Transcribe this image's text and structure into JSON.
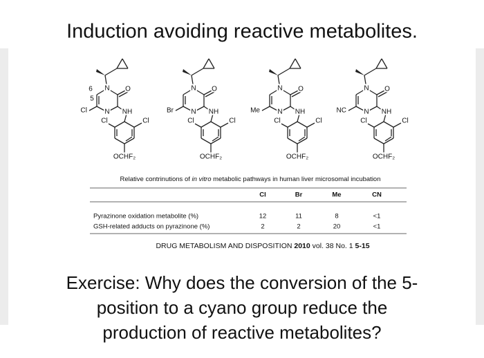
{
  "title": "Induction avoiding reactive metabolites.",
  "structures": [
    {
      "position_6": "6",
      "position_5": "5",
      "substituent": "Cl",
      "n_top": "N",
      "n_bottom": "N",
      "oxygen": "O",
      "amine": "NH",
      "chloro_left": "Cl",
      "chloro_right": "Cl",
      "ether": "OCHF₂"
    },
    {
      "substituent": "Br",
      "n_top": "N",
      "n_bottom": "N",
      "oxygen": "O",
      "amine": "NH",
      "chloro_left": "Cl",
      "chloro_right": "Cl",
      "ether": "OCHF₂"
    },
    {
      "substituent": "Me",
      "n_top": "N",
      "n_bottom": "N",
      "oxygen": "O",
      "amine": "NH",
      "chloro_left": "Cl",
      "chloro_right": "Cl",
      "ether": "OCHF₂"
    },
    {
      "substituent": "NC",
      "n_top": "N",
      "n_bottom": "N",
      "oxygen": "O",
      "amine": "NH",
      "chloro_left": "Cl",
      "chloro_right": "Cl",
      "ether": "OCHF₂"
    }
  ],
  "table": {
    "caption": [
      "Relative contrinutions of ",
      "in vitro",
      " metabolic pathways in human liver microsomal incubation"
    ],
    "columns": [
      "Cl",
      "Br",
      "Me",
      "CN"
    ],
    "rows": [
      {
        "label": "Pyrazinone oxidation metabolite (%)",
        "cells": [
          12,
          11,
          8,
          "<1"
        ]
      },
      {
        "label": "GSH-related adducts on pyrazinone (%)",
        "cells": [
          2,
          2,
          20,
          "<1"
        ]
      }
    ]
  },
  "citation": [
    "DRUG METABOLISM AND DISPOSITION ",
    "2010",
    " vol. 38 No. 1 ",
    "5-15"
  ],
  "exercise": [
    "Exercise: Why does the conversion of the 5-",
    "position to a cyano group reduce the",
    "production of reactive metabolites?"
  ]
}
